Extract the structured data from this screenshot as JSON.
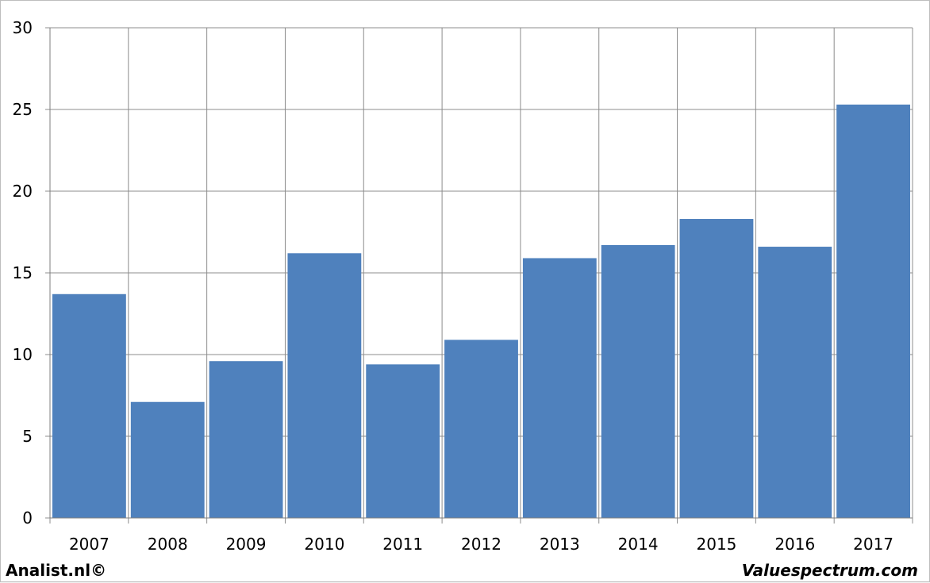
{
  "chart_data": {
    "type": "bar",
    "categories": [
      "2007",
      "2008",
      "2009",
      "2010",
      "2011",
      "2012",
      "2013",
      "2014",
      "2015",
      "2016",
      "2017"
    ],
    "values": [
      13.7,
      7.1,
      9.6,
      16.2,
      9.4,
      10.9,
      15.9,
      16.7,
      18.3,
      16.6,
      25.3
    ],
    "title": "",
    "xlabel": "",
    "ylabel": "",
    "ylim": [
      0,
      30
    ],
    "yticks": [
      "0",
      "5",
      "10",
      "15",
      "20",
      "25",
      "30"
    ],
    "grid": true,
    "bar_color": "#4f81bd",
    "grid_color": "#8c8c8c"
  },
  "footer": {
    "left_text": "Analist.nl©",
    "right_text": "Valuespectrum.com"
  }
}
